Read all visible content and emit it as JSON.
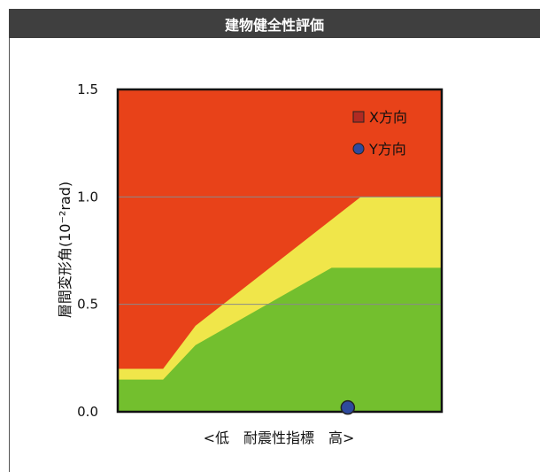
{
  "header": {
    "title": "建物健全性評価"
  },
  "chart_data": {
    "type": "area",
    "title": "",
    "xlabel": "<低　耐震性指標　高>",
    "ylabel": "層間変形角(10⁻²rad)",
    "ylim": [
      0,
      1.5
    ],
    "yticks": [
      "0.0",
      "0.5",
      "1.0",
      "1.5"
    ],
    "ytick_values": [
      0,
      0.5,
      1.0,
      1.5
    ],
    "grid": true,
    "legend_position": "top-right",
    "zones": [
      {
        "color": "#e84219",
        "upper": [
          [
            0,
            1.5
          ],
          [
            1,
            1.5
          ]
        ]
      },
      {
        "color": "#f0e64a",
        "upper": [
          [
            0,
            0.2
          ],
          [
            0.14,
            0.2
          ],
          [
            0.24,
            0.4
          ],
          [
            0.75,
            1.0
          ],
          [
            1,
            1.0
          ]
        ]
      },
      {
        "color": "#73bf2e",
        "upper": [
          [
            0,
            0.15
          ],
          [
            0.14,
            0.15
          ],
          [
            0.24,
            0.31
          ],
          [
            0.66,
            0.67
          ],
          [
            1,
            0.67
          ]
        ]
      }
    ],
    "series": [
      {
        "name": "X方向",
        "marker": "square",
        "color": "#b02a22",
        "points": []
      },
      {
        "name": "Y方向",
        "marker": "circle",
        "color": "#2e4a9e",
        "points": [
          [
            0.71,
            0.02
          ]
        ]
      }
    ]
  }
}
